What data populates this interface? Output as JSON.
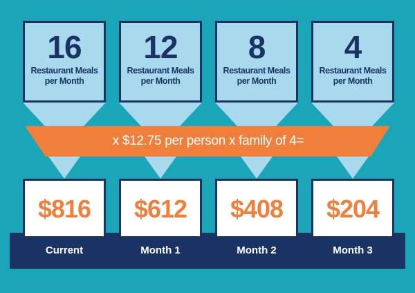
{
  "colors": {
    "background": "#1aa5b8",
    "box_fill": "#a8d9ec",
    "navy": "#1b3364",
    "orange": "#f07f3c",
    "light_blue": "#a8d9ec",
    "white": "#ffffff"
  },
  "meals": [
    {
      "count": "16",
      "line1": "Restaurant Meals",
      "line2": "per Month"
    },
    {
      "count": "12",
      "line1": "Restaurant Meals",
      "line2": "per Month"
    },
    {
      "count": "8",
      "line1": "Restaurant Meals",
      "line2": "per Month"
    },
    {
      "count": "4",
      "line1": "Restaurant Meals",
      "line2": "per Month"
    }
  ],
  "banner": {
    "text": "x $12.75 per person x family of 4="
  },
  "costs": [
    {
      "amount": "$816",
      "label": "Current"
    },
    {
      "amount": "$612",
      "label": "Month 1"
    },
    {
      "amount": "$408",
      "label": "Month 2"
    },
    {
      "amount": "$204",
      "label": "Month 3"
    }
  ]
}
